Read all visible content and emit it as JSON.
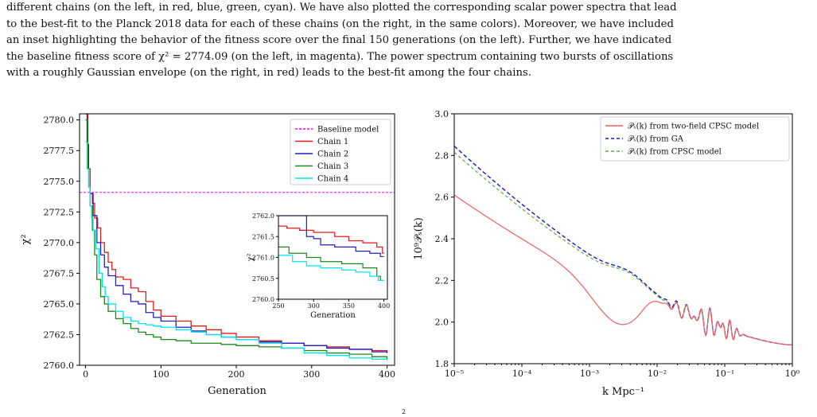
{
  "caption": {
    "lines": [
      "different chains (on the left, in red, blue, green, cyan). We have also plotted the corresponding scalar power spectra that lead",
      "to the best-fit to the Planck 2018 data for each of these chains (on the right, in the same colors). Moreover, we have included",
      "an inset highlighting the behavior of the fitness score over the final 150 generations (on the left). Further, we have indicated",
      "the baseline fitness score of χ² = 2774.09 (on the left, in magenta). The power spectrum containing two bursts of oscillations",
      "with a roughly Gaussian envelope (on the right, in red) leads to the best-fit among the four chains."
    ],
    "footer_fragment": "2"
  },
  "chart_data": [
    {
      "type": "line",
      "xlabel": "Generation",
      "ylabel": "χ²",
      "xlim": [
        -8,
        410
      ],
      "ylim": [
        2760.0,
        2780.5
      ],
      "xticks": [
        0,
        100,
        200,
        300,
        400
      ],
      "yticks": [
        2760.0,
        2762.5,
        2765.0,
        2767.5,
        2770.0,
        2772.5,
        2775.0,
        2777.5,
        2780.0
      ],
      "baseline": {
        "name": "Baseline model",
        "value": 2774.09,
        "color": "#ff00ff"
      },
      "legend_position": "top-right",
      "series": [
        {
          "name": "Chain 1",
          "color": "#e41a1c",
          "x": [
            0,
            3,
            6,
            9,
            12,
            16,
            20,
            25,
            30,
            35,
            40,
            50,
            60,
            70,
            80,
            90,
            100,
            120,
            140,
            160,
            180,
            200,
            230,
            260,
            290,
            320,
            350,
            380,
            400
          ],
          "y": [
            2780.5,
            2776.0,
            2774.0,
            2773.2,
            2772.0,
            2771.2,
            2770.0,
            2769.2,
            2768.4,
            2767.8,
            2767.2,
            2767.0,
            2766.3,
            2766.0,
            2765.2,
            2764.5,
            2764.0,
            2763.6,
            2763.2,
            2762.9,
            2762.6,
            2762.3,
            2762.0,
            2761.8,
            2761.6,
            2761.5,
            2761.3,
            2761.2,
            2761.0
          ]
        },
        {
          "name": "Chain 2",
          "color": "#1f1fcc",
          "x": [
            0,
            2,
            4,
            6,
            10,
            15,
            20,
            25,
            30,
            40,
            50,
            60,
            70,
            80,
            90,
            100,
            120,
            140,
            160,
            180,
            200,
            230,
            260,
            290,
            320,
            350,
            380,
            400
          ],
          "y": [
            2780.5,
            2778.0,
            2776.0,
            2774.0,
            2772.2,
            2770.0,
            2769.0,
            2768.0,
            2767.3,
            2766.5,
            2765.8,
            2765.2,
            2765.0,
            2764.3,
            2763.9,
            2763.6,
            2763.1,
            2762.8,
            2762.5,
            2762.3,
            2762.1,
            2761.9,
            2761.8,
            2761.6,
            2761.4,
            2761.3,
            2761.1,
            2761.0
          ]
        },
        {
          "name": "Chain 3",
          "color": "#1a8a1a",
          "x": [
            0,
            3,
            6,
            9,
            12,
            15,
            20,
            25,
            30,
            40,
            50,
            60,
            70,
            80,
            90,
            100,
            120,
            140,
            160,
            180,
            200,
            230,
            260,
            290,
            320,
            350,
            380,
            400
          ],
          "y": [
            2780.0,
            2776.0,
            2773.0,
            2771.0,
            2769.0,
            2767.0,
            2765.6,
            2765.0,
            2764.4,
            2763.8,
            2763.4,
            2763.0,
            2762.7,
            2762.5,
            2762.3,
            2762.1,
            2762.0,
            2761.8,
            2761.8,
            2761.7,
            2761.6,
            2761.5,
            2761.4,
            2761.2,
            2761.0,
            2760.9,
            2760.7,
            2760.5
          ]
        },
        {
          "name": "Chain 4",
          "color": "#00e5ee",
          "x": [
            0,
            2,
            4,
            6,
            8,
            10,
            14,
            18,
            22,
            26,
            30,
            40,
            50,
            60,
            70,
            80,
            90,
            100,
            120,
            140,
            160,
            180,
            200,
            230,
            260,
            290,
            320,
            350,
            380,
            400
          ],
          "y": [
            2778.2,
            2776.0,
            2774.5,
            2773.0,
            2772.0,
            2771.0,
            2769.5,
            2767.5,
            2766.4,
            2765.6,
            2765.0,
            2764.4,
            2763.9,
            2763.6,
            2763.4,
            2763.3,
            2763.2,
            2763.1,
            2762.9,
            2762.7,
            2762.5,
            2762.3,
            2762.1,
            2761.8,
            2761.4,
            2761.0,
            2760.8,
            2760.6,
            2760.5,
            2760.4
          ]
        }
      ],
      "inset": {
        "xlabel": "Generation",
        "ylabel": "χ²",
        "xlim": [
          250,
          405
        ],
        "ylim": [
          2760.0,
          2762.0
        ],
        "xticks": [
          250,
          300,
          350,
          400
        ],
        "yticks": [
          2760.0,
          2760.5,
          2761.0,
          2761.5,
          2762.0
        ],
        "tick_labels": [
          "2760.0",
          "2760.5",
          "2761.0",
          "2761.5",
          "2762.0"
        ],
        "series": [
          {
            "name": "Chain 1",
            "color": "#e41a1c",
            "x": [
              250,
              262,
              262,
              280,
              280,
              300,
              300,
              330,
              330,
              350,
              350,
              370,
              370,
              390,
              390,
              398,
              398,
              400
            ],
            "y": [
              2761.75,
              2761.75,
              2761.7,
              2761.7,
              2761.65,
              2761.65,
              2761.6,
              2761.6,
              2761.5,
              2761.5,
              2761.4,
              2761.4,
              2761.35,
              2761.35,
              2761.25,
              2761.25,
              2761.1,
              2761.1
            ]
          },
          {
            "name": "Chain 2",
            "color": "#1f1fcc",
            "x": [
              250,
              290,
              290,
              300,
              300,
              310,
              310,
              330,
              330,
              360,
              360,
              380,
              380,
              395,
              395,
              400
            ],
            "y": [
              2762.0,
              2762.0,
              2761.5,
              2761.5,
              2761.45,
              2761.45,
              2761.3,
              2761.3,
              2761.25,
              2761.25,
              2761.15,
              2761.15,
              2761.1,
              2761.1,
              2761.02,
              2761.02
            ]
          },
          {
            "name": "Chain 3",
            "color": "#1a8a1a",
            "x": [
              250,
              265,
              265,
              290,
              290,
              310,
              310,
              340,
              340,
              370,
              370,
              390,
              390,
              395,
              395,
              400
            ],
            "y": [
              2761.25,
              2761.25,
              2761.1,
              2761.1,
              2761.0,
              2761.0,
              2760.9,
              2760.9,
              2760.85,
              2760.85,
              2760.75,
              2760.75,
              2760.55,
              2760.55,
              2760.45,
              2760.45
            ]
          },
          {
            "name": "Chain 4",
            "color": "#00e5ee",
            "x": [
              250,
              270,
              270,
              290,
              290,
              310,
              310,
              340,
              340,
              360,
              360,
              380,
              380,
              392,
              392,
              400
            ],
            "y": [
              2761.05,
              2761.05,
              2760.9,
              2760.9,
              2760.8,
              2760.8,
              2760.75,
              2760.75,
              2760.7,
              2760.7,
              2760.65,
              2760.65,
              2760.55,
              2760.55,
              2760.45,
              2760.45
            ]
          }
        ]
      }
    },
    {
      "type": "line",
      "xlabel": "k Mpc⁻¹",
      "ylabel": "10⁹𝒫ₛ(k)",
      "x_scale": "log",
      "xlim": [
        1e-05,
        1.0
      ],
      "ylim": [
        1.8,
        3.0
      ],
      "xtick_labels": [
        "10⁻⁵",
        "10⁻⁴",
        "10⁻³",
        "10⁻²",
        "10⁻¹",
        "10⁰"
      ],
      "yticks": [
        1.8,
        2.0,
        2.2,
        2.4,
        2.6,
        2.8,
        3.0
      ],
      "ytick_labels": [
        "1.8",
        "2.0",
        "2.2",
        "2.4",
        "2.6",
        "2.8",
        "3.0"
      ],
      "legend_position": "top-right",
      "series": [
        {
          "name": "𝒫ₛ(k) from two-field CPSC model",
          "color": "#f06060",
          "dash": "solid"
        },
        {
          "name": "𝒫ₛ(k) from GA",
          "color": "#1a1ad0",
          "dash": "dashed"
        },
        {
          "name": "𝒫ₛ(k) from CPSC model",
          "color": "#5fae4a",
          "dash": "dashed"
        }
      ]
    }
  ]
}
